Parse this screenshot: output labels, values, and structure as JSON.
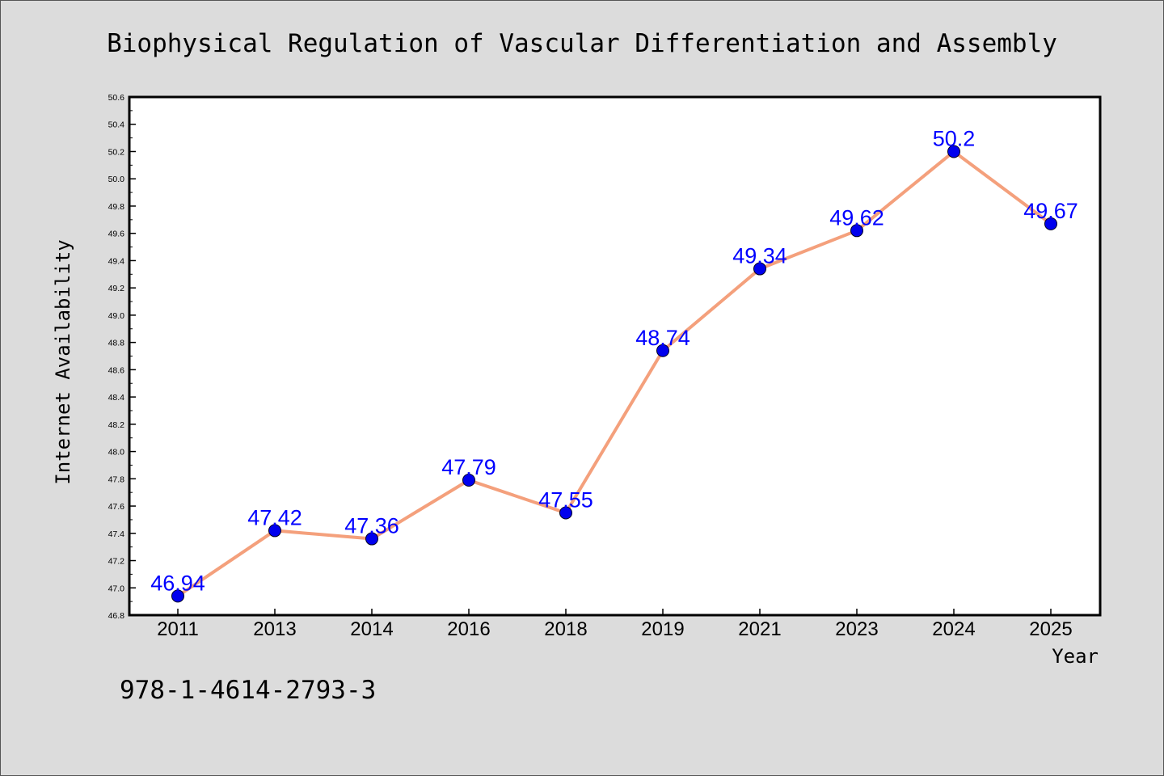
{
  "chart_data": {
    "type": "line",
    "title": "Biophysical Regulation of Vascular Differentiation and Assembly",
    "xlabel": "Year",
    "ylabel": "Internet Availability",
    "categories": [
      "2011",
      "2013",
      "2014",
      "2016",
      "2018",
      "2019",
      "2021",
      "2023",
      "2024",
      "2025"
    ],
    "values": [
      46.94,
      47.42,
      47.36,
      47.79,
      47.55,
      48.74,
      49.34,
      49.62,
      50.2,
      49.67
    ],
    "data_labels": [
      "46.94",
      "47.42",
      "47.36",
      "47.79",
      "47.55",
      "48.74",
      "49.34",
      "49.62",
      "50.2",
      "49.67"
    ],
    "ylim": [
      46.8,
      50.6
    ],
    "yticks": [
      "46.8",
      "47.0",
      "47.2",
      "47.4",
      "47.6",
      "47.8",
      "48.0",
      "48.2",
      "48.4",
      "48.6",
      "48.8",
      "49.0",
      "49.2",
      "49.4",
      "49.6",
      "49.8",
      "50.0",
      "50.2",
      "50.4",
      "50.6"
    ],
    "grid": false,
    "legend": "none",
    "colors": {
      "line": "#f4a07c",
      "marker": "#0000ee",
      "label": "#0000ff",
      "background": "#dcdcdc",
      "plot_background": "#ffffff"
    }
  },
  "footer": {
    "isbn": "978-1-4614-2793-3"
  }
}
